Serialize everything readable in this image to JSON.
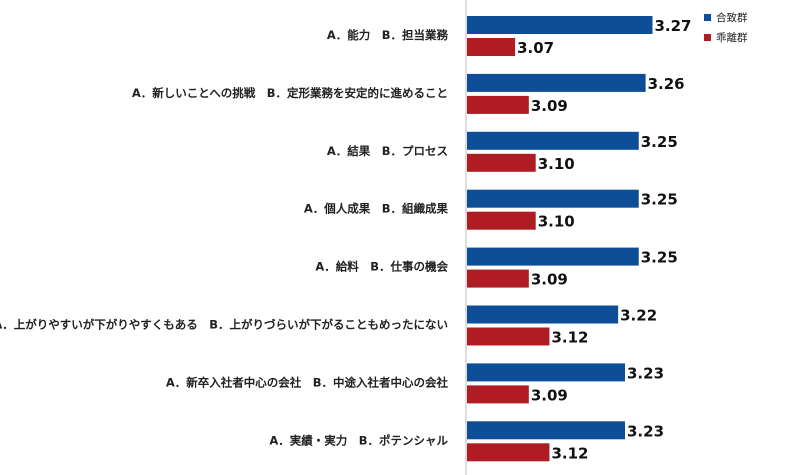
{
  "chart_data": {
    "type": "bar",
    "orientation": "horizontal",
    "categories": [
      "A．能力　B．担当業務",
      "A．新しいことへの挑戦　B．定形業務を安定的に進めること",
      "A．結果　B．プロセス",
      "A．個人成果　B．組織成果",
      "A．給料　B．仕事の機会",
      "A．上がりやすいが下がりやすくもある　B．上がりづらいが下がることもめったにない",
      "A．新卒入社者中心の会社　B．中途入社者中心の会社",
      "A．実績・実力　B．ポテンシャル"
    ],
    "series": [
      {
        "name": "合致群",
        "color": "#0e4d97",
        "values": [
          3.27,
          3.26,
          3.25,
          3.25,
          3.25,
          3.22,
          3.23,
          3.23
        ]
      },
      {
        "name": "乖離群",
        "color": "#b01c24",
        "values": [
          3.07,
          3.09,
          3.1,
          3.1,
          3.09,
          3.12,
          3.09,
          3.12
        ]
      }
    ],
    "value_format": "0.00",
    "legend_position": "top-right",
    "grid": false
  }
}
